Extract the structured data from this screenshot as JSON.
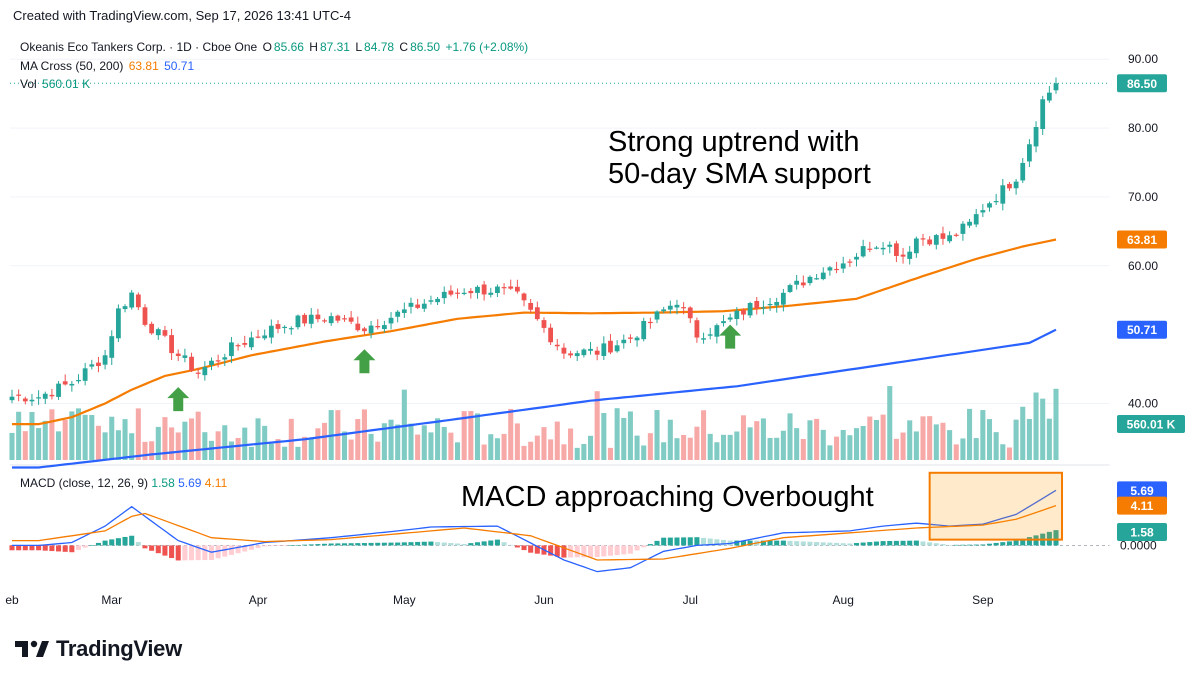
{
  "header": {
    "created": "Created with TradingView.com, Sep 17, 2026 13:41 UTC-4"
  },
  "legend": {
    "symbol": "Okeanis Eco Tankers Corp. · 1D · Cboe One",
    "open_label": "O",
    "open": "85.66",
    "high_label": "H",
    "high": "87.31",
    "low_label": "L",
    "low": "84.78",
    "close_label": "C",
    "close": "86.50",
    "change": "+1.76 (+2.08%)",
    "ma_label": "MA Cross (50, 200)",
    "ma50": "63.81",
    "ma200": "50.71",
    "vol_label": "Vol",
    "vol": "560.01 K"
  },
  "macd_legend": {
    "label": "MACD (close, 12, 26, 9)",
    "hist": "1.58",
    "macd": "5.69",
    "signal": "4.11"
  },
  "annotations": {
    "uptrend_line1": "Strong uptrend with",
    "uptrend_line2": "50-day SMA support",
    "macd_note": "MACD approaching Overbought"
  },
  "brand": {
    "name": "TradingView"
  },
  "colors": {
    "up": "#26a69a",
    "down": "#ef5350",
    "vol_up": "#80cbc4",
    "vol_down": "#f7a9a7",
    "sma50": "#f57c00",
    "sma200": "#2962ff",
    "macd": "#2962ff",
    "signal": "#f57c00",
    "arrow": "#43a047"
  },
  "chart_data": [
    {
      "type": "candlestick",
      "y_ticks": [
        "90.00",
        "80.00",
        "70.00",
        "60.00",
        "40.00"
      ],
      "ylim": [
        31.5,
        92.5
      ],
      "x_ticks": [
        "eb",
        "Mar",
        "Apr",
        "May",
        "Jun",
        "Jul",
        "Aug",
        "Sep"
      ],
      "price_label": "86.50",
      "sma50_label": "63.81",
      "sma200_label": "50.71",
      "volume_label": "560.01 K",
      "price_checkpoints": [
        [
          "Feb 13",
          41
        ],
        [
          "Feb 20",
          43
        ],
        [
          "Feb 27",
          47
        ],
        [
          "Mar 3",
          53.5
        ],
        [
          "Mar 5",
          56
        ],
        [
          "Mar 9",
          52
        ],
        [
          "Mar 12",
          49
        ],
        [
          "Mar 16",
          47
        ],
        [
          "Mar 19",
          44.5
        ],
        [
          "Mar 26",
          48
        ],
        [
          "Apr 2",
          50.5
        ],
        [
          "Apr 9",
          52
        ],
        [
          "Apr 16",
          52.5
        ],
        [
          "Apr 23",
          51
        ],
        [
          "Apr 30",
          53
        ],
        [
          "May 7",
          55
        ],
        [
          "May 14",
          56.5
        ],
        [
          "May 21",
          56.5
        ],
        [
          "May 26",
          55.5
        ],
        [
          "May 30",
          52
        ],
        [
          "Jun 4",
          47.5
        ],
        [
          "Jun 11",
          47.5
        ],
        [
          "Jun 18",
          49.5
        ],
        [
          "Jun 25",
          53.5
        ],
        [
          "Jun 29",
          55
        ],
        [
          "Jul 2",
          50
        ],
        [
          "Jul 7",
          51
        ],
        [
          "Jul 14",
          54
        ],
        [
          "Jul 21",
          56
        ],
        [
          "Jul 28",
          59
        ],
        [
          "Aug 4",
          61
        ],
        [
          "Aug 7",
          63
        ],
        [
          "Aug 11",
          63.5
        ],
        [
          "Aug 14",
          61.5
        ],
        [
          "Aug 18",
          64
        ],
        [
          "Aug 25",
          64
        ],
        [
          "Aug 28",
          66
        ],
        [
          "Sep 1",
          68.5
        ],
        [
          "Sep 4",
          71
        ],
        [
          "Sep 8",
          73
        ],
        [
          "Sep 10",
          78
        ],
        [
          "Sep 14",
          84
        ],
        [
          "Sep 16",
          86.5
        ]
      ],
      "sma50_checkpoints": [
        [
          "Feb 13",
          37
        ],
        [
          "Feb 20",
          38
        ],
        [
          "Feb 27",
          40
        ],
        [
          "Mar 5",
          42
        ],
        [
          "Mar 12",
          44
        ],
        [
          "Mar 19",
          45
        ],
        [
          "Mar 31",
          47
        ],
        [
          "Apr 15",
          49
        ],
        [
          "Apr 29",
          50.5
        ],
        [
          "May 13",
          52.3
        ],
        [
          "May 27",
          53.2
        ],
        [
          "Jun 10",
          53.1
        ],
        [
          "Jun 24",
          53.2
        ],
        [
          "Jul 8",
          53.4
        ],
        [
          "Jul 22",
          54.2
        ],
        [
          "Aug 5",
          55.2
        ],
        [
          "Aug 19",
          58.5
        ],
        [
          "Aug 31",
          61
        ],
        [
          "Sep 9",
          62.8
        ],
        [
          "Sep 16",
          63.81
        ]
      ],
      "sma200_checkpoints": [
        [
          "Feb 13",
          30.7
        ],
        [
          "Mar 10",
          32.6
        ],
        [
          "Apr 10",
          34.8
        ],
        [
          "May 10",
          37.5
        ],
        [
          "Jun 10",
          40.4
        ],
        [
          "Jul 10",
          42.5
        ],
        [
          "Aug 10",
          45.5
        ],
        [
          "Sep 10",
          48.8
        ],
        [
          "Sep 16",
          50.71
        ]
      ],
      "signal_arrows": [
        "Mar 16",
        "Apr 23",
        "Jul 9"
      ]
    },
    {
      "type": "macd",
      "y_tick": "0.0000",
      "macd_label": "5.69",
      "signal_label": "4.11",
      "hist_label": "1.58",
      "ylim": [
        -4.6,
        8.2
      ],
      "macd_checkpoints": [
        [
          "Feb 13",
          0
        ],
        [
          "Feb 20",
          0.3
        ],
        [
          "Feb 27",
          2
        ],
        [
          "Mar 5",
          4
        ],
        [
          "Mar 9",
          3
        ],
        [
          "Mar 16",
          0.5
        ],
        [
          "Mar 23",
          -0.7
        ],
        [
          "Apr 2",
          0.3
        ],
        [
          "Apr 16",
          0.8
        ],
        [
          "Apr 30",
          1.5
        ],
        [
          "May 7",
          1.9
        ],
        [
          "May 21",
          2
        ],
        [
          "Jun 4",
          -1.5
        ],
        [
          "Jun 11",
          -2.7
        ],
        [
          "Jun 18",
          -2.3
        ],
        [
          "Jun 25",
          -0.6
        ],
        [
          "Jul 2",
          0
        ],
        [
          "Jul 9",
          0.2
        ],
        [
          "Jul 21",
          1.3
        ],
        [
          "Aug 4",
          1.5
        ],
        [
          "Aug 11",
          2
        ],
        [
          "Aug 18",
          2.3
        ],
        [
          "Aug 25",
          2
        ],
        [
          "Sep 1",
          2.2
        ],
        [
          "Sep 8",
          3.2
        ],
        [
          "Sep 16",
          5.69
        ]
      ],
      "signal_checkpoints": [
        [
          "Feb 13",
          0.5
        ],
        [
          "Feb 27",
          1.5
        ],
        [
          "Mar 5",
          3
        ],
        [
          "Mar 9",
          3.3
        ],
        [
          "Mar 23",
          0.8
        ],
        [
          "Apr 2",
          0.4
        ],
        [
          "Apr 16",
          0.6
        ],
        [
          "Apr 30",
          1.2
        ],
        [
          "May 14",
          1.8
        ],
        [
          "May 28",
          1
        ],
        [
          "Jun 11",
          -1.5
        ],
        [
          "Jun 25",
          -1.4
        ],
        [
          "Jul 9",
          -0.3
        ],
        [
          "Jul 21",
          0.8
        ],
        [
          "Aug 4",
          1.3
        ],
        [
          "Aug 18",
          1.8
        ],
        [
          "Sep 1",
          2.1
        ],
        [
          "Sep 8",
          2.7
        ],
        [
          "Sep 16",
          4.11
        ]
      ],
      "overbought_box": {
        "from": "Aug 20",
        "to": "Sep 18",
        "low": 0.6,
        "high": 7.5
      }
    }
  ]
}
